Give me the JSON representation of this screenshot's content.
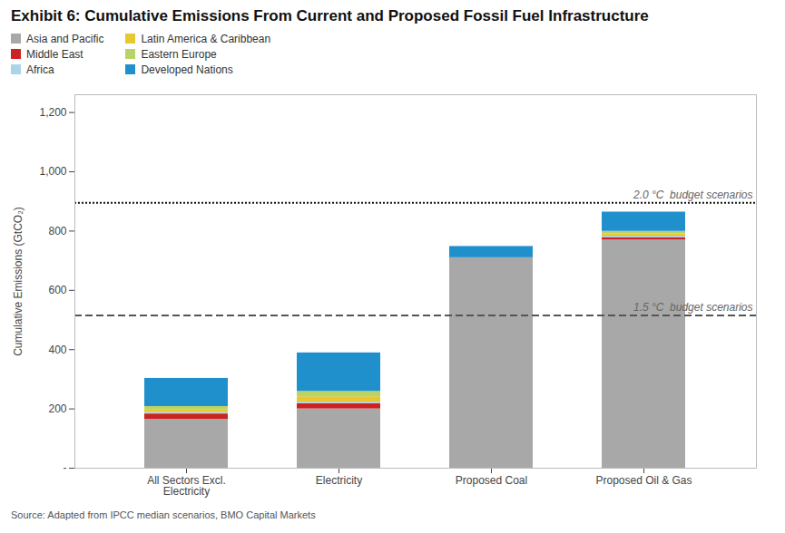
{
  "chart_data": {
    "type": "bar",
    "stacked": true,
    "title": "Exhibit 6: Cumulative Emissions From Current and Proposed Fossil Fuel Infrastructure",
    "ylabel": "Cumulative Emissions (GtCO₂)",
    "source": "Source: Adapted from IPCC median scenarios, BMO Capital Markets",
    "categories": [
      "All Sectors Excl.\nElectricity",
      "Electricity",
      "Proposed Coal",
      "Proposed Oil & Gas"
    ],
    "series": [
      {
        "name": "Asia and Pacific",
        "color": "#a8a8a8",
        "values": [
          165,
          200,
          710,
          770
        ]
      },
      {
        "name": "Middle East",
        "color": "#cc2222",
        "values": [
          18,
          18,
          0,
          8
        ]
      },
      {
        "name": "Africa",
        "color": "#aad4e8",
        "values": [
          5,
          5,
          0,
          5
        ]
      },
      {
        "name": "Latin America & Caribbean",
        "color": "#e8c830",
        "values": [
          10,
          18,
          0,
          8
        ]
      },
      {
        "name": "Eastern Europe",
        "color": "#b8d468",
        "values": [
          10,
          18,
          0,
          8
        ]
      },
      {
        "name": "Developed Nations",
        "color": "#2090cc",
        "values": [
          95,
          130,
          38,
          65
        ]
      }
    ],
    "ylim": [
      0,
      1260
    ],
    "yticks": [
      {
        "value": 0,
        "label": "-"
      },
      200,
      400,
      600,
      800,
      {
        "value": 1000,
        "label": "1,000"
      },
      {
        "value": 1200,
        "label": "1,200"
      }
    ],
    "annotations": [
      {
        "y": 515,
        "text": "1.5 °C  budget scenarios",
        "line_style": "dashed",
        "color": "#555555"
      },
      {
        "y": 895,
        "text": "2.0 °C  budget scenarios",
        "line_style": "dotted",
        "color": "#111111"
      }
    ],
    "grid": false,
    "legend": "upper left"
  }
}
